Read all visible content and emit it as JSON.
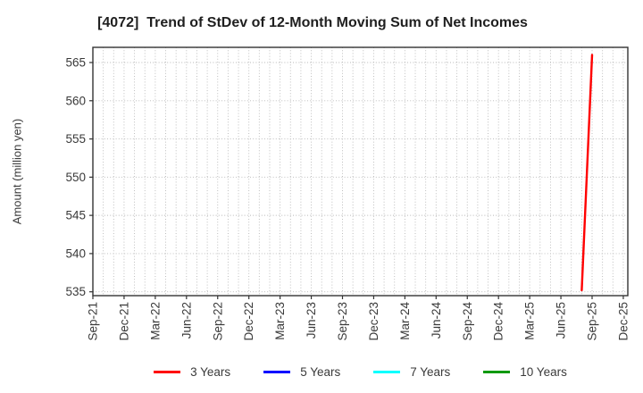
{
  "title": "[4072]  Trend of StDev of 12-Month Moving Sum of Net Incomes",
  "chart_data": {
    "type": "line",
    "title": "[4072]  Trend of StDev of 12-Month Moving Sum of Net Incomes",
    "xlabel": "",
    "ylabel": "Amount (million yen)",
    "y_ticks": [
      535,
      540,
      545,
      550,
      555,
      560,
      565
    ],
    "ylim": [
      534.4,
      567.0
    ],
    "x_tick_labels": [
      "Sep-21",
      "Dec-21",
      "Mar-22",
      "Jun-22",
      "Sep-22",
      "Dec-22",
      "Mar-23",
      "Jun-23",
      "Sep-23",
      "Dec-23",
      "Mar-24",
      "Jun-24",
      "Sep-24",
      "Dec-24",
      "Mar-25",
      "Jun-25",
      "Sep-25",
      "Dec-25"
    ],
    "grid": true,
    "grid_style": "dotted",
    "legend_position": "bottom",
    "series": [
      {
        "name": "3 Years",
        "color": "#ff0000",
        "points": [
          {
            "x": "Aug-25",
            "value": 535.2
          },
          {
            "x": "Sep-25",
            "value": 566.0
          }
        ]
      },
      {
        "name": "5 Years",
        "color": "#0000ff",
        "points": []
      },
      {
        "name": "7 Years",
        "color": "#00ffff",
        "points": []
      },
      {
        "name": "10 Years",
        "color": "#0a9a0a",
        "points": []
      }
    ],
    "colors": {
      "grid": "#b8b8b8",
      "frame": "#333333",
      "tick_text": "#3a3a3a",
      "title_text": "#1f1f1f"
    }
  }
}
